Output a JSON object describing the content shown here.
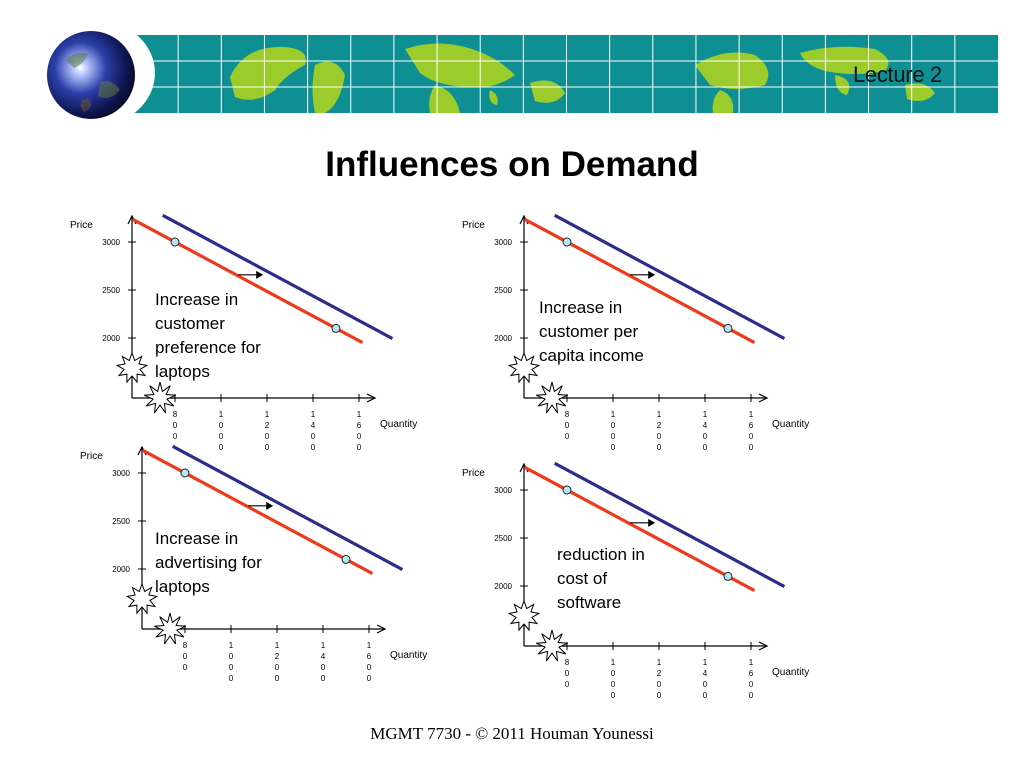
{
  "header": {
    "lecture_label": "Lecture 2",
    "title": "Influences on Demand",
    "colors": {
      "banner": "#0e8f93",
      "land": "#9ccc2c",
      "grid": "#ffffff"
    }
  },
  "footer": {
    "text": "MGMT 7730 - © 2011 Houman Younessi"
  },
  "chart_data": [
    {
      "type": "line",
      "annotation": "Increase in\ncustomer\npreference for\nlaptops",
      "ylabel": "Price",
      "xlabel": "Quantity",
      "y_ticks": [
        "3000",
        "2500",
        "2000"
      ],
      "x_ticks": [
        "800",
        "1000",
        "1200",
        "1400",
        "1600"
      ],
      "series": [
        {
          "color": "#ee3a1a",
          "points": [
            [
              800,
              3000
            ],
            [
              1500,
              2100
            ]
          ]
        },
        {
          "color": "#2c2c8c"
        }
      ],
      "shift": "right"
    },
    {
      "type": "line",
      "annotation": "Increase in\ncustomer per\ncapita income",
      "ylabel": "Price",
      "xlabel": "Quantity",
      "y_ticks": [
        "3000",
        "2500",
        "2000"
      ],
      "x_ticks": [
        "800",
        "1000",
        "1200",
        "1400",
        "1600"
      ],
      "series": [
        {
          "color": "#ee3a1a",
          "points": [
            [
              800,
              3000
            ],
            [
              1500,
              2100
            ]
          ]
        },
        {
          "color": "#2c2c8c"
        }
      ],
      "shift": "right"
    },
    {
      "type": "line",
      "annotation": "Increase in\nadvertising for\nlaptops",
      "ylabel": "Price",
      "xlabel": "Quantity",
      "y_ticks": [
        "3000",
        "2500",
        "2000"
      ],
      "x_ticks": [
        "800",
        "1000",
        "1200",
        "1400",
        "1600"
      ],
      "series": [
        {
          "color": "#ee3a1a",
          "points": [
            [
              800,
              3000
            ],
            [
              1500,
              2100
            ]
          ]
        },
        {
          "color": "#2c2c8c"
        }
      ],
      "shift": "right"
    },
    {
      "type": "line",
      "annotation": "reduction in\ncost of\nsoftware",
      "ylabel": "Price",
      "xlabel": "Quantity",
      "y_ticks": [
        "3000",
        "2500",
        "2000"
      ],
      "x_ticks": [
        "800",
        "1000",
        "1200",
        "1400",
        "1600"
      ],
      "series": [
        {
          "color": "#ee3a1a",
          "points": [
            [
              800,
              3000
            ],
            [
              1500,
              2100
            ]
          ]
        },
        {
          "color": "#2c2c8c"
        }
      ],
      "shift": "right"
    }
  ]
}
